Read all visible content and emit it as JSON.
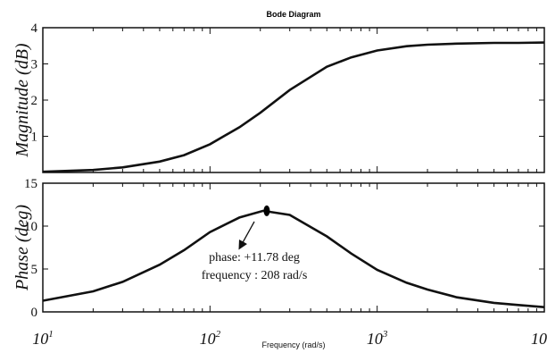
{
  "chart_data": {
    "type": "line",
    "title": "Bode Diagram",
    "xlabel": "Frequency  (rad/s)",
    "xscale": "log",
    "xlim": [
      10,
      10000
    ],
    "xticks": [
      {
        "base": "10",
        "exp": "1"
      },
      {
        "base": "10",
        "exp": "2"
      },
      {
        "base": "10",
        "exp": "3"
      },
      {
        "base": "10",
        "exp": ""
      }
    ],
    "grid": false,
    "panels": [
      {
        "name": "magnitude",
        "ylabel": "Magnitude (dB)",
        "ylim": [
          0,
          4
        ],
        "yticks": [
          "1",
          "2",
          "3",
          "4"
        ],
        "series": [
          {
            "x": [
              10,
              20,
              30,
              50,
              70,
              100,
              150,
              200,
              300,
              500,
              700,
              1000,
              1500,
              2000,
              3000,
              5000,
              7000,
              10000
            ],
            "y": [
              0.02,
              0.07,
              0.14,
              0.3,
              0.48,
              0.78,
              1.25,
              1.65,
              2.28,
              2.92,
              3.18,
              3.37,
              3.49,
              3.53,
              3.56,
              3.58,
              3.58,
              3.59
            ]
          }
        ]
      },
      {
        "name": "phase",
        "ylabel": "Phase (deg)",
        "ylim": [
          0,
          15
        ],
        "yticks": [
          "0",
          "5",
          "10",
          "15"
        ],
        "series": [
          {
            "x": [
              10,
              20,
              30,
              50,
              70,
              100,
              150,
              208,
              300,
              500,
              700,
              1000,
              1500,
              2000,
              3000,
              5000,
              7000,
              10000
            ],
            "y": [
              1.3,
              2.4,
              3.5,
              5.5,
              7.2,
              9.3,
              11.0,
              11.78,
              11.3,
              8.8,
              6.8,
              4.9,
              3.4,
              2.6,
              1.7,
              1.05,
              0.8,
              0.55
            ]
          }
        ],
        "marker": {
          "x": 208,
          "y": 11.78
        },
        "annotation": [
          "phase: +11.78 deg",
          "frequency : 208 rad/s"
        ]
      }
    ]
  }
}
